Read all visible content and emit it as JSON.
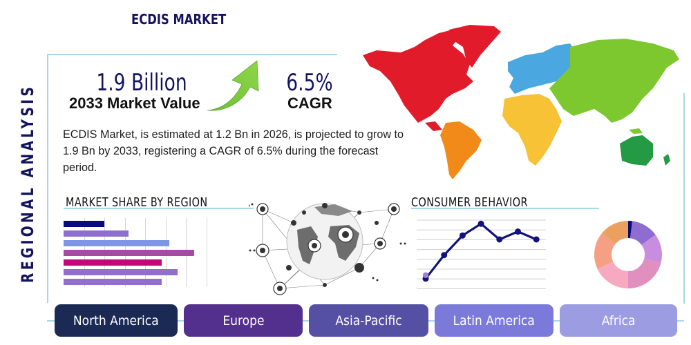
{
  "header": {
    "title": "ECDIS MARKET",
    "side_title": "REGIONAL ANALYSIS"
  },
  "stats": {
    "market_value": "1.9 Billion",
    "market_value_label": "2033 Market Value",
    "cagr_value": "6.5%",
    "cagr_label": "CAGR"
  },
  "summary": "ECDIS Market, is estimated at 1.2 Bn in 2026, is projected to grow to 1.9 Bn by 2033, registering a CAGR of 6.5% during the forecast period.",
  "sections": {
    "market_share_title": "MARKET SHARE BY REGION",
    "consumer_behavior_title": "CONSUMER BEHAVIOR"
  },
  "regions": [
    {
      "label": "North America",
      "color": "#1b2a55"
    },
    {
      "label": "Europe",
      "color": "#54308e"
    },
    {
      "label": "Asia-Pacific",
      "color": "#5650a4"
    },
    {
      "label": "Latin America",
      "color": "#7b7ada"
    },
    {
      "label": "Africa",
      "color": "#9c9ce2"
    }
  ],
  "colors": {
    "title": "#14145e",
    "frame": "#a9d6e5",
    "line": "#11127a",
    "arrow": "#6fc23a"
  },
  "chart_data": [
    {
      "type": "bar",
      "title": "MARKET SHARE BY REGION",
      "orientation": "horizontal",
      "categories": [
        "1",
        "2",
        "3",
        "4",
        "5",
        "6",
        "7"
      ],
      "values": [
        2.0,
        3.2,
        5.2,
        6.4,
        4.8,
        5.6,
        4.8
      ],
      "colors": [
        "#0a0a80",
        "#8e6fcf",
        "#7f97e0",
        "#a848a8",
        "#c2077a",
        "#9070cc",
        "#9070cc"
      ],
      "xlim": [
        0,
        7
      ],
      "grid": true,
      "xlabel": "",
      "ylabel": ""
    },
    {
      "type": "line",
      "title": "CONSUMER BEHAVIOR",
      "x": [
        1,
        2,
        3,
        4,
        5,
        6,
        7
      ],
      "values": [
        1.0,
        3.4,
        5.4,
        6.6,
        5.0,
        5.8,
        5.0
      ],
      "ylim": [
        0,
        8
      ],
      "grid": true,
      "color": "#11127a",
      "highlight_point_color": "#9b7fd8",
      "xlabel": "",
      "ylabel": ""
    },
    {
      "type": "pie",
      "title": "",
      "donut": true,
      "values": [
        2,
        13,
        14,
        21,
        18,
        18,
        14
      ],
      "colors": [
        "#0c0c78",
        "#8e6cd0",
        "#c98de0",
        "#e08fbf",
        "#f8a9c2",
        "#f5a085",
        "#eca060"
      ]
    }
  ]
}
